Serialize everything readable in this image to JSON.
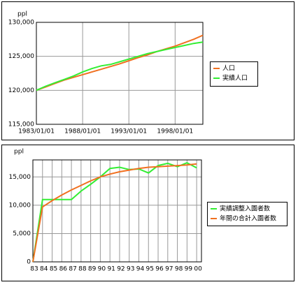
{
  "chart_data": [
    {
      "type": "line",
      "y_label": "ppl",
      "x": [
        1983,
        1984,
        1985,
        1986,
        1987,
        1988,
        1989,
        1990,
        1991,
        1992,
        1993,
        1994,
        1995,
        1996,
        1997,
        1998,
        1999,
        2000,
        2001
      ],
      "xlim": [
        1983,
        2001
      ],
      "xticks": [
        {
          "value": 1983,
          "label": "1983/01/01"
        },
        {
          "value": 1988,
          "label": "1988/01/01"
        },
        {
          "value": 1993,
          "label": "1993/01/01"
        },
        {
          "value": 1998,
          "label": "1998/01/01"
        }
      ],
      "ylim": [
        115000,
        130000
      ],
      "yticks": [
        {
          "value": 115000,
          "label": "115,000"
        },
        {
          "value": 120000,
          "label": "120,000"
        },
        {
          "value": 125000,
          "label": "125,000"
        },
        {
          "value": 130000,
          "label": "130,000"
        }
      ],
      "grid": true,
      "legend": "right",
      "series": [
        {
          "name": "人口",
          "color": "#f07020",
          "values": [
            120000,
            120500,
            121000,
            121500,
            121900,
            122300,
            122700,
            123100,
            123500,
            123900,
            124350,
            124800,
            125200,
            125700,
            126100,
            126500,
            127000,
            127500,
            128100
          ]
        },
        {
          "name": "実績人口",
          "color": "#33ee33",
          "values": [
            120000,
            120600,
            121100,
            121600,
            122100,
            122700,
            123200,
            123600,
            123800,
            124200,
            124600,
            125000,
            125400,
            125700,
            126000,
            126300,
            126600,
            126900,
            127100
          ]
        }
      ]
    },
    {
      "type": "line",
      "y_label": "ppl",
      "categories": [
        "83",
        "84",
        "85",
        "86",
        "87",
        "88",
        "89",
        "90",
        "91",
        "92",
        "93",
        "94",
        "95",
        "96",
        "97",
        "98",
        "99",
        "00"
      ],
      "ylim": [
        0,
        18000
      ],
      "yticks": [
        0,
        {
          "value": 5000,
          "label": "5,000"
        },
        {
          "value": 10000,
          "label": "10,000"
        },
        {
          "value": 15000,
          "label": "15,000"
        }
      ],
      "grid": true,
      "legend": "right",
      "series": [
        {
          "name": "実績調整入園者数",
          "color": "#33ee33",
          "values": [
            0,
            11000,
            11000,
            11000,
            11000,
            12500,
            13700,
            15000,
            16500,
            16700,
            16300,
            16400,
            15700,
            17000,
            17400,
            16800,
            17500,
            16600
          ]
        },
        {
          "name": "年間の合計入園者数",
          "color": "#f07020",
          "values": [
            0,
            9700,
            10800,
            11800,
            12700,
            13500,
            14300,
            15000,
            15500,
            15900,
            16200,
            16500,
            16700,
            16800,
            16900,
            17000,
            17100,
            17300
          ]
        }
      ]
    }
  ]
}
